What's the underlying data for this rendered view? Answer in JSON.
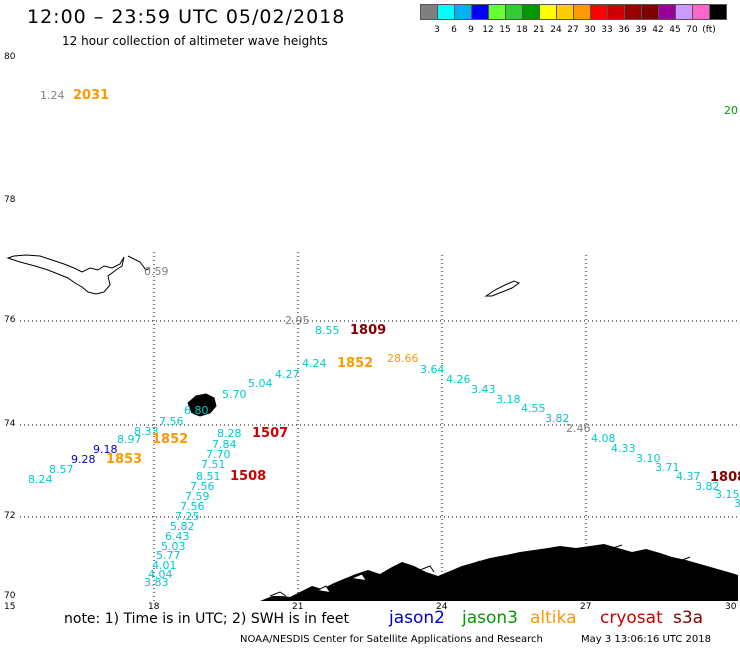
{
  "header": {
    "title": "12:00 – 23:59 UTC 05/02/2018",
    "subtitle": "12 hour collection of altimeter wave heights"
  },
  "color_scale": {
    "colors": [
      "#7f7f7f",
      "#00ffff",
      "#00b0f0",
      "#0000ff",
      "#66ff33",
      "#33cc33",
      "#009900",
      "#ffff00",
      "#ffcc00",
      "#ff9900",
      "#ff0000",
      "#cc0000",
      "#990000",
      "#800000",
      "#990099",
      "#cc99ff",
      "#ff66cc",
      "#000000"
    ],
    "labels": [
      "3",
      "6",
      "9",
      "12",
      "15",
      "18",
      "21",
      "24",
      "27",
      "30",
      "33",
      "36",
      "39",
      "42",
      "45",
      "70",
      "(ft)"
    ]
  },
  "map": {
    "lat_labels": [
      "80",
      "78",
      "76",
      "74",
      "72",
      "70"
    ],
    "lon_labels": [
      "15",
      "18",
      "21",
      "24",
      "27",
      "30"
    ],
    "points": [
      {
        "t": "1.24",
        "c": "#7f7f7f"
      },
      {
        "t": "2031",
        "c": "#ff9900"
      },
      {
        "t": "20",
        "c": "#009900"
      },
      {
        "t": "0.59",
        "c": "#7f7f7f"
      },
      {
        "t": "2.95",
        "c": "#7f7f7f"
      },
      {
        "t": "8.55",
        "c": "#00cccc"
      },
      {
        "t": "1809",
        "c": "#800000"
      },
      {
        "t": "4.24",
        "c": "#00cccc"
      },
      {
        "t": "1852",
        "c": "#ff9900"
      },
      {
        "t": "28.66",
        "c": "#ff9900"
      },
      {
        "t": "3.64",
        "c": "#00cccc"
      },
      {
        "t": "4.27",
        "c": "#00cccc"
      },
      {
        "t": "5.04",
        "c": "#00cccc"
      },
      {
        "t": "4.26",
        "c": "#00cccc"
      },
      {
        "t": "3.43",
        "c": "#00cccc"
      },
      {
        "t": "5.70",
        "c": "#00cccc"
      },
      {
        "t": "3.18",
        "c": "#00cccc"
      },
      {
        "t": "4.55",
        "c": "#00cccc"
      },
      {
        "t": "6.80",
        "c": "#00cccc"
      },
      {
        "t": "3.82",
        "c": "#00cccc"
      },
      {
        "t": "2.46",
        "c": "#7f7f7f"
      },
      {
        "t": "7.56",
        "c": "#00cccc"
      },
      {
        "t": "8.33",
        "c": "#00cccc"
      },
      {
        "t": "8.28",
        "c": "#00cccc"
      },
      {
        "t": "1507",
        "c": "#cc0000"
      },
      {
        "t": "8.97",
        "c": "#00cccc"
      },
      {
        "t": "1852",
        "c": "#ff9900"
      },
      {
        "t": "7.84",
        "c": "#00cccc"
      },
      {
        "t": "4.08",
        "c": "#00cccc"
      },
      {
        "t": "9.18",
        "c": "#0000cc"
      },
      {
        "t": "7.70",
        "c": "#00cccc"
      },
      {
        "t": "4.33",
        "c": "#00cccc"
      },
      {
        "t": "9.28",
        "c": "#0000cc"
      },
      {
        "t": "1853",
        "c": "#ff9900"
      },
      {
        "t": "7.51",
        "c": "#00cccc"
      },
      {
        "t": "3.10",
        "c": "#00cccc"
      },
      {
        "t": "8.57",
        "c": "#00cccc"
      },
      {
        "t": "8.51",
        "c": "#00cccc"
      },
      {
        "t": "1508",
        "c": "#cc0000"
      },
      {
        "t": "3.71",
        "c": "#00cccc"
      },
      {
        "t": "8.24",
        "c": "#00cccc"
      },
      {
        "t": "7.56",
        "c": "#00cccc"
      },
      {
        "t": "4.37",
        "c": "#00cccc"
      },
      {
        "t": "1808",
        "c": "#800000"
      },
      {
        "t": "7.59",
        "c": "#00cccc"
      },
      {
        "t": "3.82",
        "c": "#00cccc"
      },
      {
        "t": "3.15",
        "c": "#00cccc"
      },
      {
        "t": "7.56",
        "c": "#00cccc"
      },
      {
        "t": "3",
        "c": "#00cccc"
      },
      {
        "t": "7.25",
        "c": "#00cccc"
      },
      {
        "t": "5.82",
        "c": "#00cccc"
      },
      {
        "t": "6.43",
        "c": "#00cccc"
      },
      {
        "t": "5.03",
        "c": "#00cccc"
      },
      {
        "t": "5.77",
        "c": "#00cccc"
      },
      {
        "t": "4.01",
        "c": "#00cccc"
      },
      {
        "t": "4.04",
        "c": "#00cccc"
      },
      {
        "t": "3.83",
        "c": "#00cccc"
      }
    ]
  },
  "footer": {
    "note": "note: 1) Time is in UTC; 2) SWH is in feet",
    "satellites": [
      {
        "name": "jason2",
        "color": "#0000cc"
      },
      {
        "name": "jason3",
        "color": "#009900"
      },
      {
        "name": "altika",
        "color": "#ff9900"
      },
      {
        "name": "cryosat",
        "color": "#cc0000"
      },
      {
        "name": "s3a",
        "color": "#800000"
      }
    ],
    "credit": "NOAA/NESDIS Center for Satellite Applications and Research",
    "timestamp": "May  3 13:06:16 UTC 2018"
  }
}
